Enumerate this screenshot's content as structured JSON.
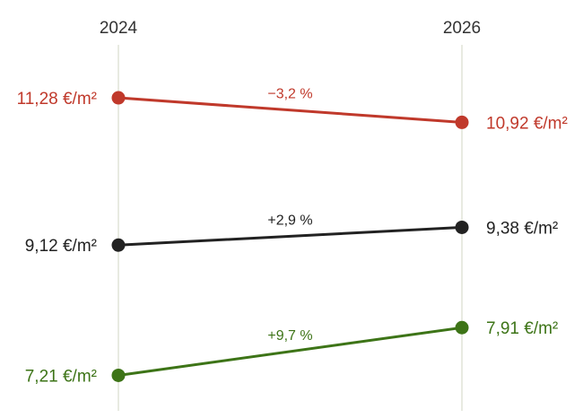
{
  "chart_data": {
    "type": "slope",
    "x": [
      "2024",
      "2026"
    ],
    "unit": "€/m²",
    "series": [
      {
        "values": [
          11.28,
          10.92
        ],
        "labels": [
          "11,28 €/m²",
          "10,92 €/m²"
        ],
        "change": "−3,2 %",
        "color": "#c0392b"
      },
      {
        "values": [
          9.12,
          9.38
        ],
        "labels": [
          "9,12 €/m²",
          "9,38 €/m²"
        ],
        "change": "+2,9 %",
        "color": "#222222"
      },
      {
        "values": [
          7.21,
          7.91
        ],
        "labels": [
          "7,21 €/m²",
          "7,91 €/m²"
        ],
        "change": "+9,7 %",
        "color": "#3d7417"
      }
    ],
    "ylim": [
      6.69,
      12.03
    ],
    "grid": false,
    "legend": "none"
  }
}
